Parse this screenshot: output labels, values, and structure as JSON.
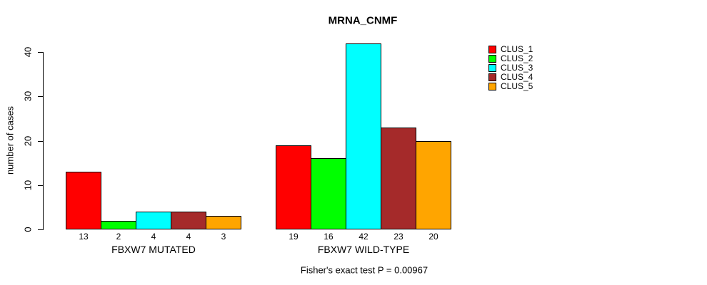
{
  "chart_data": {
    "type": "bar",
    "title": "MRNA_CNMF",
    "ylabel": "number of cases",
    "xlabel": "",
    "ylim": [
      0,
      40
    ],
    "yticks": [
      0,
      10,
      20,
      30,
      40
    ],
    "grid": false,
    "legend_position": "top-right",
    "categories": [
      "FBXW7 MUTATED",
      "FBXW7 WILD-TYPE"
    ],
    "series": [
      {
        "name": "CLUS_1",
        "color": "#FF0000",
        "values": [
          13,
          19
        ]
      },
      {
        "name": "CLUS_2",
        "color": "#00FF00",
        "values": [
          2,
          16
        ]
      },
      {
        "name": "CLUS_3",
        "color": "#00FFFF",
        "values": [
          4,
          42
        ]
      },
      {
        "name": "CLUS_4",
        "color": "#A52A2A",
        "values": [
          4,
          23
        ]
      },
      {
        "name": "CLUS_5",
        "color": "#FFA500",
        "values": [
          3,
          20
        ]
      }
    ],
    "bar_value_labels": [
      [
        13,
        2,
        4,
        4,
        3
      ],
      [
        19,
        16,
        42,
        23,
        20
      ]
    ],
    "annotation": "Fisher's exact test P = 0.00967",
    "axis_color": "#000000",
    "text_color": "#000000",
    "background": "#FFFFFF"
  }
}
